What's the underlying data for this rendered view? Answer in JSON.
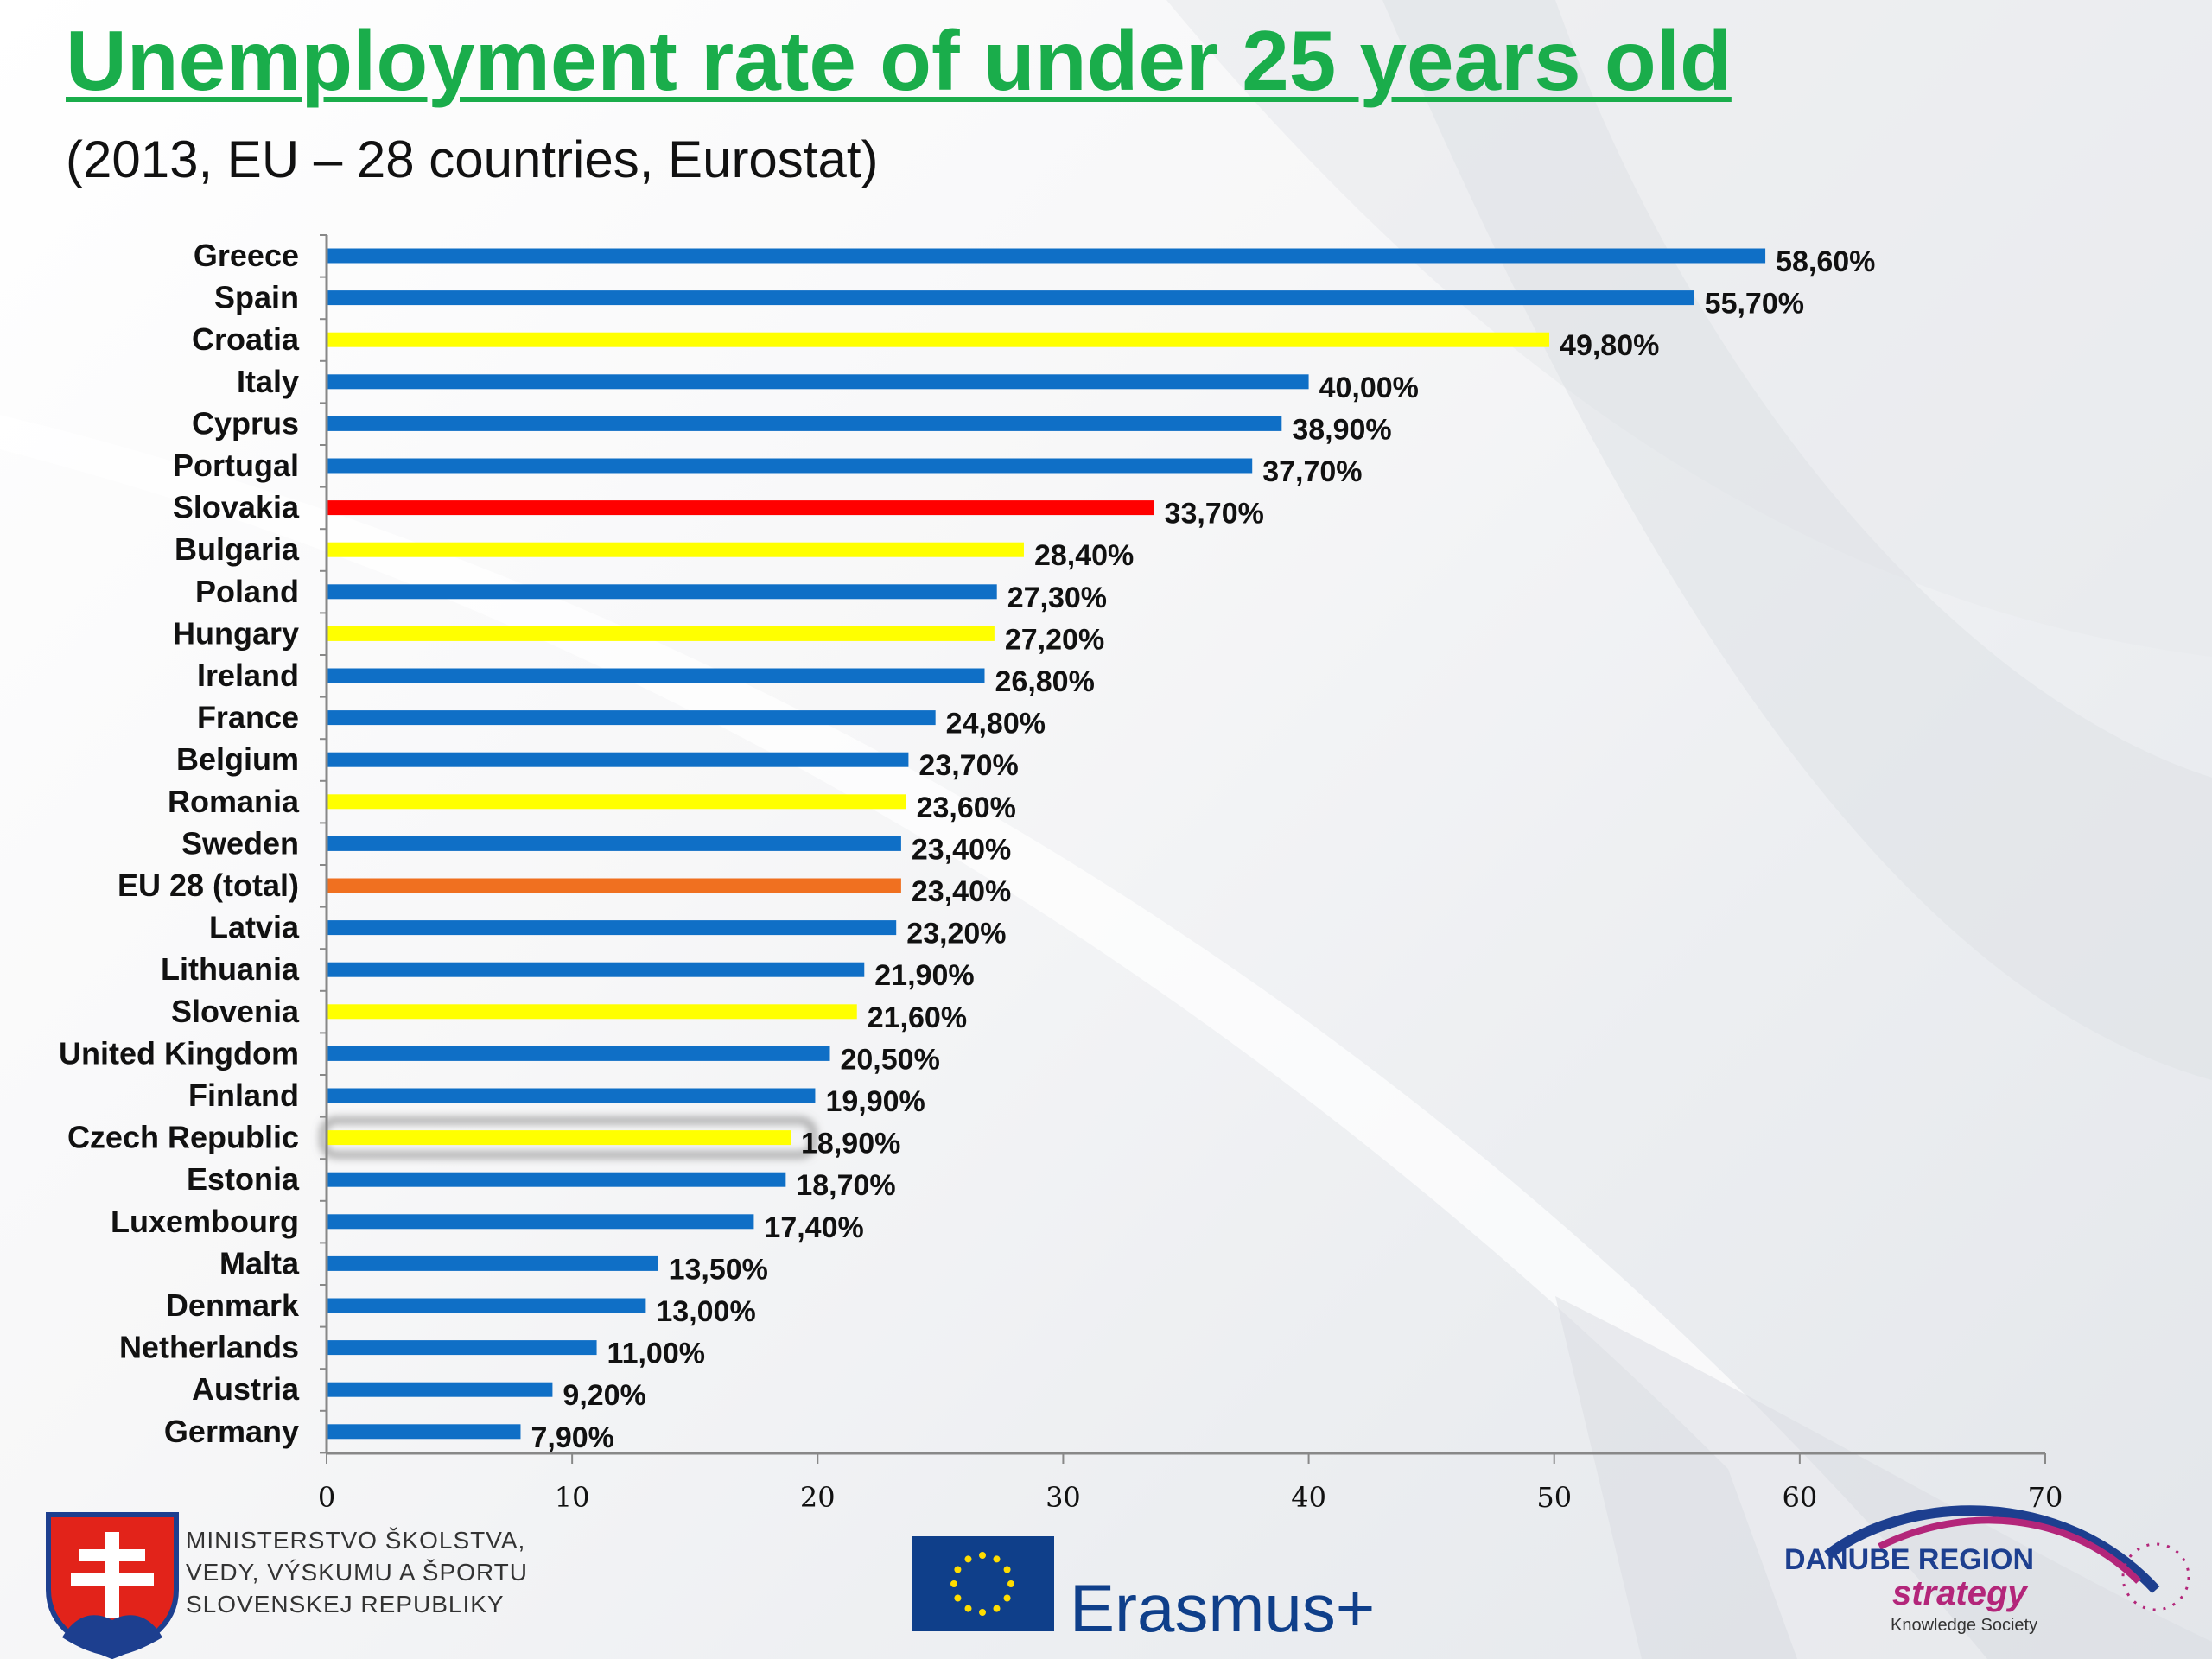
{
  "slide": {
    "title": "Unemployment rate of under 25 years old",
    "subtitle": "(2013, EU – 28 countries, Eurostat)"
  },
  "colors": {
    "title": "#1aad4b",
    "bar_default": "#0f6fc6",
    "bar_highlight_yellow": "#ffff00",
    "bar_highlight_red": "#ff0000",
    "bar_eu_total": "#f07020"
  },
  "chart_data": {
    "type": "bar",
    "orientation": "horizontal",
    "categories": [
      "Greece",
      "Spain",
      "Croatia",
      "Italy",
      "Cyprus",
      "Portugal",
      "Slovakia",
      "Bulgaria",
      "Poland",
      "Hungary",
      "Ireland",
      "France",
      "Belgium",
      "Romania",
      "Sweden",
      "EU 28 (total)",
      "Latvia",
      "Lithuania",
      "Slovenia",
      "United Kingdom",
      "Finland",
      "Czech Republic",
      "Estonia",
      "Luxembourg",
      "Malta",
      "Denmark",
      "Netherlands",
      "Austria",
      "Germany"
    ],
    "values": [
      58.6,
      55.7,
      49.8,
      40.0,
      38.9,
      37.7,
      33.7,
      28.4,
      27.3,
      27.2,
      26.8,
      24.8,
      23.7,
      23.6,
      23.4,
      23.4,
      23.2,
      21.9,
      21.6,
      20.5,
      19.9,
      18.9,
      18.7,
      17.4,
      13.5,
      13.0,
      11.0,
      9.2,
      7.9
    ],
    "value_labels": [
      "58,60%",
      "55,70%",
      "49,80%",
      "40,00%",
      "38,90%",
      "37,70%",
      "33,70%",
      "28,40%",
      "27,30%",
      "27,20%",
      "26,80%",
      "24,80%",
      "23,70%",
      "23,60%",
      "23,40%",
      "23,40%",
      "23,20%",
      "21,90%",
      "21,60%",
      "20,50%",
      "19,90%",
      "18,90%",
      "18,70%",
      "17,40%",
      "13,50%",
      "13,00%",
      "11,00%",
      "9,20%",
      "7,90%"
    ],
    "bar_colors": [
      "#0f6fc6",
      "#0f6fc6",
      "#ffff00",
      "#0f6fc6",
      "#0f6fc6",
      "#0f6fc6",
      "#ff0000",
      "#ffff00",
      "#0f6fc6",
      "#ffff00",
      "#0f6fc6",
      "#0f6fc6",
      "#0f6fc6",
      "#ffff00",
      "#0f6fc6",
      "#f07020",
      "#0f6fc6",
      "#0f6fc6",
      "#ffff00",
      "#0f6fc6",
      "#0f6fc6",
      "#ffff00",
      "#0f6fc6",
      "#0f6fc6",
      "#0f6fc6",
      "#0f6fc6",
      "#0f6fc6",
      "#0f6fc6",
      "#0f6fc6"
    ],
    "highlighted": "Czech Republic",
    "xlim": [
      0,
      70
    ],
    "xticks": [
      0,
      10,
      20,
      30,
      40,
      50,
      60,
      70
    ],
    "grid": false,
    "title": "",
    "xlabel": "",
    "ylabel": ""
  },
  "logos": {
    "ministry": {
      "lines": [
        "MINISTERSTVO ŠKOLSTVA,",
        "VEDY, VÝSKUMU A ŠPORTU",
        "SLOVENSKEJ REPUBLIKY"
      ],
      "icon": "slovak-coat-of-arms-icon"
    },
    "erasmus": {
      "text": "Erasmus+",
      "icon": "eu-flag-icon"
    },
    "danube": {
      "title": "DANUBE REGION",
      "strategy": "strategy",
      "sub": "Knowledge Society",
      "icon": "danube-arc-icon"
    }
  }
}
